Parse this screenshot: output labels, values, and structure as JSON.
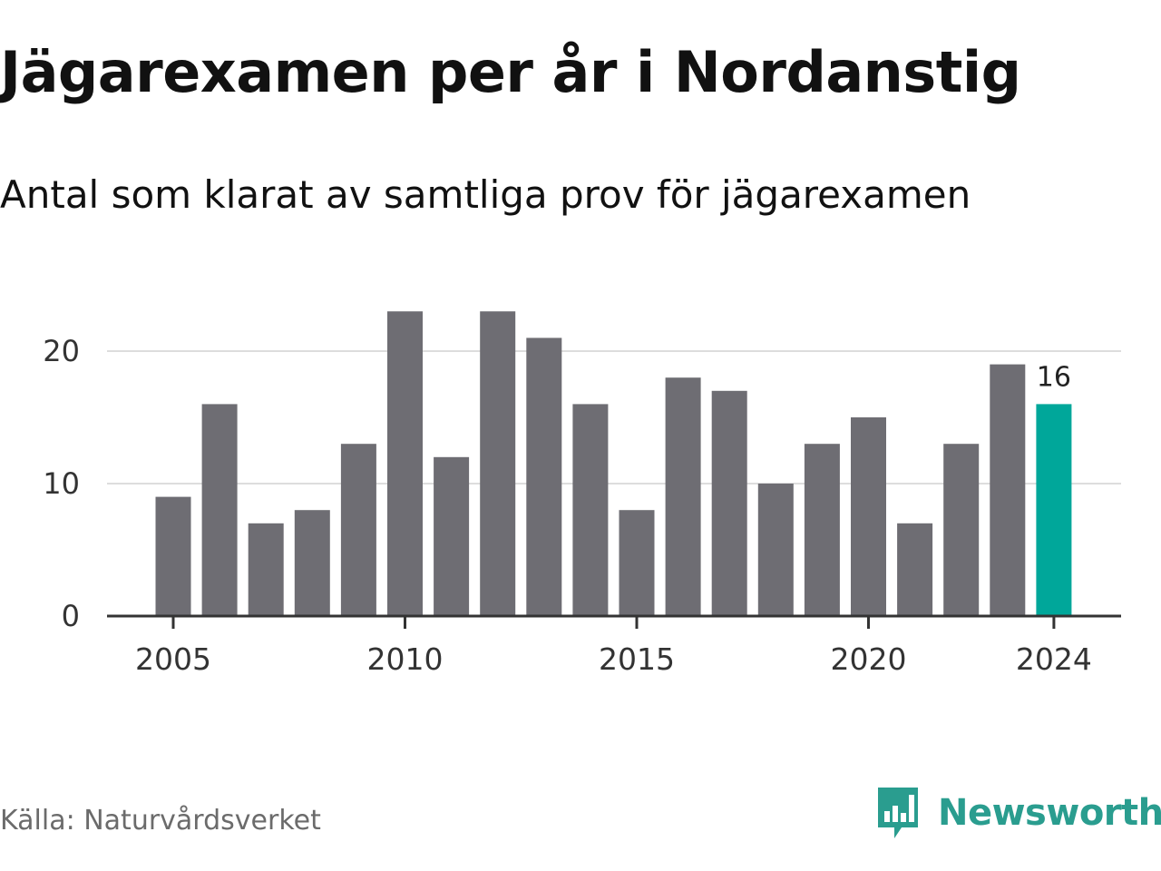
{
  "header": {
    "title": "Jägarexamen per år i Nordanstig",
    "subtitle": "Antal som klarat av samtliga prov för jägarexamen"
  },
  "footer": {
    "source": "Källa: Naturvårdsverket",
    "brand": "Newsworthy"
  },
  "colors": {
    "bar": "#6e6d73",
    "highlight": "#00a79a",
    "grid": "#dddddd",
    "axis": "#333333",
    "brand": "#2a9d8f"
  },
  "chart_data": {
    "type": "bar",
    "title": "Jägarexamen per år i Nordanstig",
    "subtitle": "Antal som klarat av samtliga prov för jägarexamen",
    "xlabel": "",
    "ylabel": "",
    "categories": [
      2005,
      2006,
      2007,
      2008,
      2009,
      2010,
      2011,
      2012,
      2013,
      2014,
      2015,
      2016,
      2017,
      2018,
      2019,
      2020,
      2021,
      2022,
      2023,
      2024
    ],
    "values": [
      9,
      16,
      7,
      8,
      13,
      23,
      12,
      23,
      21,
      16,
      8,
      18,
      17,
      10,
      13,
      15,
      7,
      13,
      19,
      16
    ],
    "ylim": [
      0,
      25
    ],
    "yticks": [
      0,
      10,
      20
    ],
    "xticks": [
      2005,
      2010,
      2015,
      2020,
      2024
    ],
    "highlight_category": 2024,
    "annotation": {
      "category": 2024,
      "label": "16"
    },
    "grid": true,
    "legend": "none"
  }
}
